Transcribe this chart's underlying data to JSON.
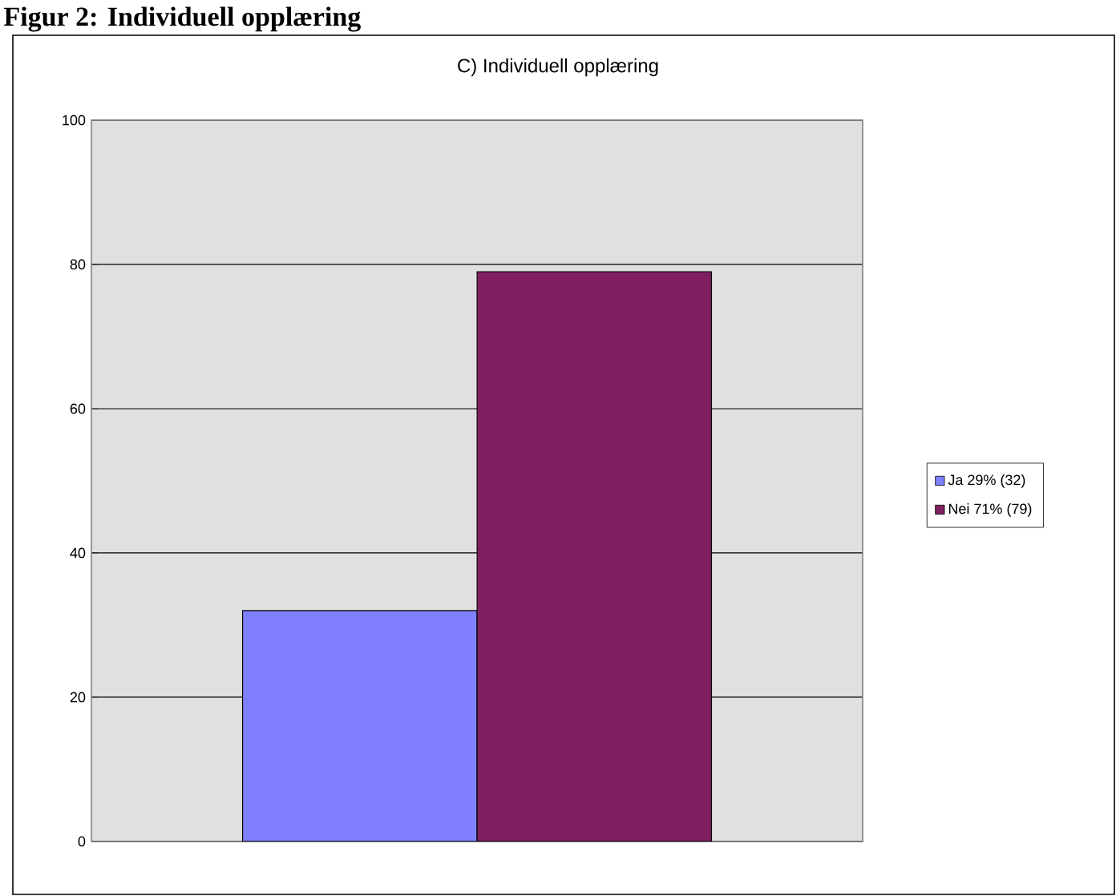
{
  "chart_data": {
    "type": "bar",
    "title": "C) Individuell opplæring",
    "annotations": [
      "Figur 2: Individuell opplæring"
    ],
    "categories": [
      null
    ],
    "series": [
      {
        "name": "Ja 29% (32)",
        "color": "#8080ff",
        "values": [
          32
        ]
      },
      {
        "name": "Nei 71% (79)",
        "color": "#7f1f5f",
        "values": [
          79
        ]
      }
    ],
    "ylim": [
      0,
      100
    ],
    "yticks": [
      0,
      20,
      40,
      60,
      80,
      100
    ],
    "grid": "y",
    "legend": "right",
    "tick_labels": "y"
  }
}
